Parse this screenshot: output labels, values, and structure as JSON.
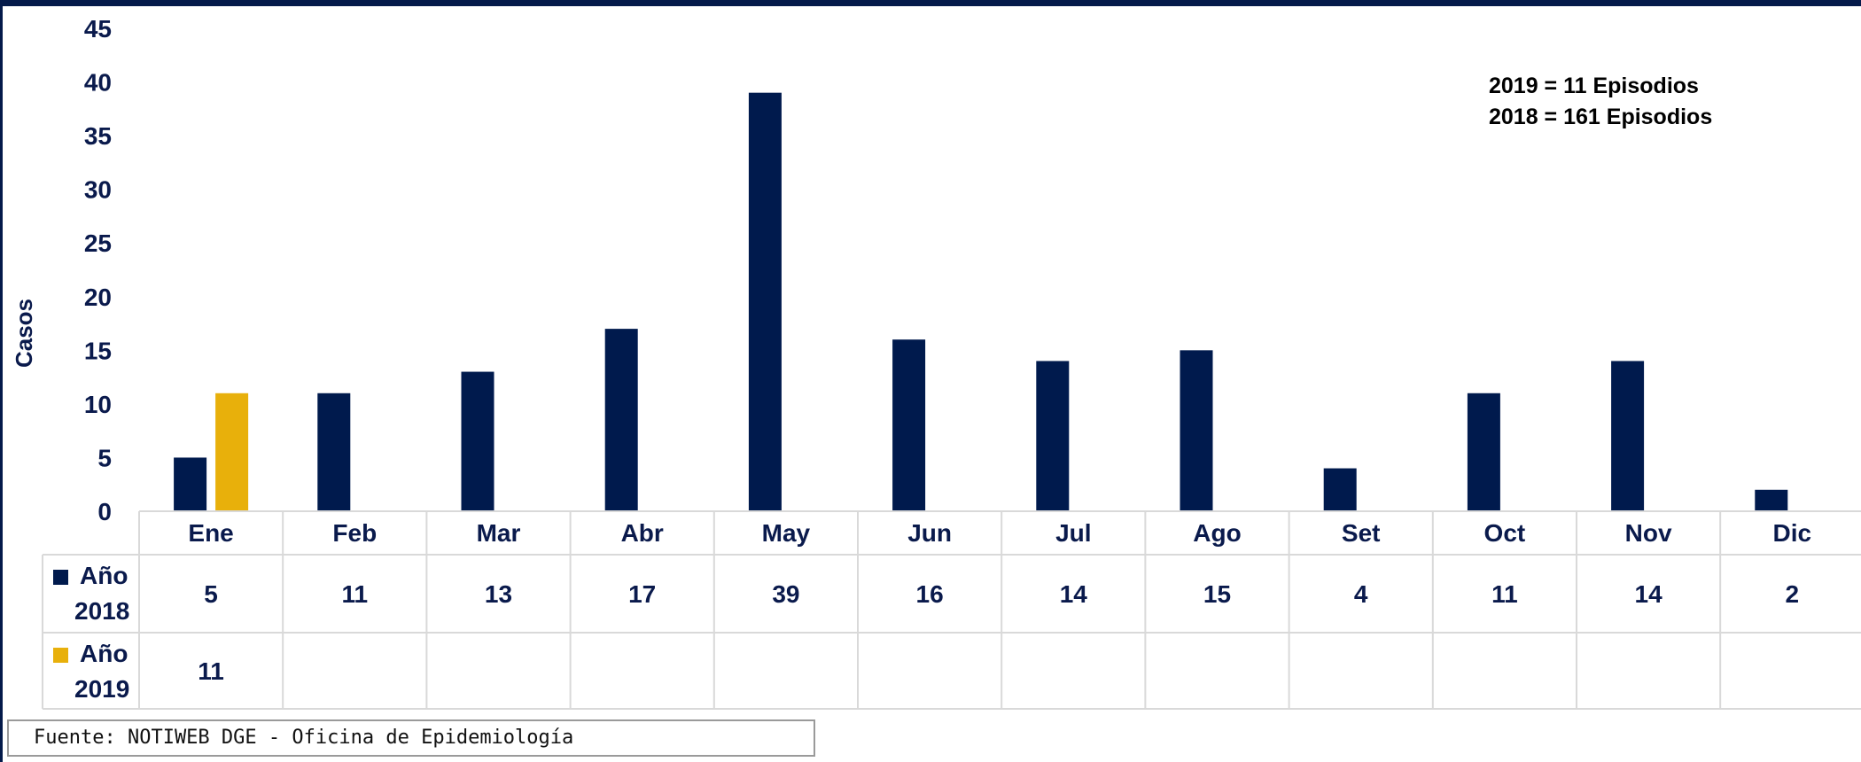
{
  "chart_data": {
    "type": "bar",
    "title": "",
    "xlabel": "",
    "ylabel": "Casos",
    "ylim": [
      0,
      45
    ],
    "yticks": [
      0,
      5,
      10,
      15,
      20,
      25,
      30,
      35,
      40,
      45
    ],
    "categories": [
      "Ene",
      "Feb",
      "Mar",
      "Abr",
      "May",
      "Jun",
      "Jul",
      "Ago",
      "Set",
      "Oct",
      "Nov",
      "Dic"
    ],
    "series": [
      {
        "name": "Año 2018",
        "color": "#001a4d",
        "values": [
          5,
          11,
          13,
          17,
          39,
          16,
          14,
          15,
          4,
          11,
          14,
          2
        ]
      },
      {
        "name": "Año 2019",
        "color": "#e8b00b",
        "values": [
          11,
          null,
          null,
          null,
          null,
          null,
          null,
          null,
          null,
          null,
          null,
          null
        ]
      }
    ],
    "legend": "data-table",
    "grid": false,
    "annotations": [
      "2019 = 11 Episodios",
      "2018 = 161 Episodios"
    ]
  },
  "footer": {
    "source": "Fuente: NOTIWEB DGE - Oficina de Epidemiología"
  }
}
